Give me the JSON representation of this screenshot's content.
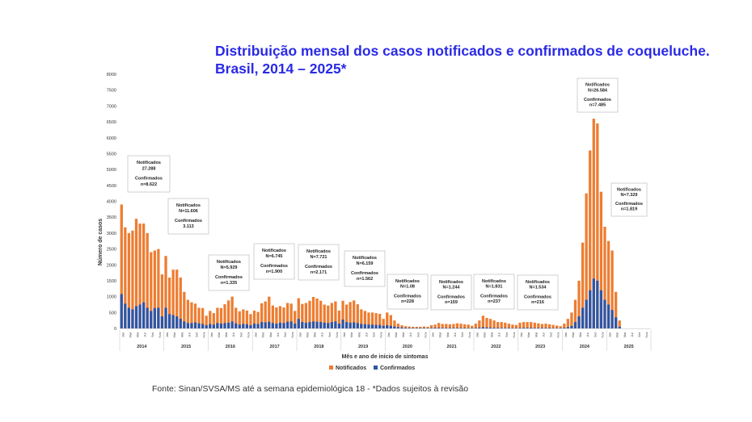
{
  "title_line1": "Distribuição mensal dos casos notificados e confirmados de coqueluche.",
  "title_line2": "Brasil, 2014 – 2025*",
  "source": "Fonte: Sinan/SVSA/MS até a semana epidemiológica 18 - *Dados sujeitos à revisão",
  "colors": {
    "notificados": "#ed7d31",
    "confirmados": "#2f55a4",
    "title": "#2a2ae6"
  },
  "chart_data": {
    "type": "bar",
    "stacked": "overlay",
    "title": "Distribuição mensal dos casos notificados e confirmados de coqueluche. Brasil, 2014 – 2025*",
    "xlabel": "Mês e ano de início de sintomas",
    "ylabel": "Número de casos",
    "ylim": [
      0,
      8000
    ],
    "yticks": [
      0,
      500,
      1000,
      1500,
      2000,
      2500,
      3000,
      3500,
      4000,
      4500,
      5000,
      5500,
      6000,
      6500,
      7000,
      7500,
      8000
    ],
    "years": [
      "2014",
      "2015",
      "2016",
      "2017",
      "2018",
      "2019",
      "2020",
      "2021",
      "2022",
      "2023",
      "2024",
      "2025"
    ],
    "month_ticks": [
      "Jan",
      "Mar",
      "Mai",
      "Jul",
      "Set",
      "Nov"
    ],
    "legend": [
      "Notificados",
      "Confirmados"
    ],
    "legend_position": "bottom-center",
    "series": [
      {
        "name": "Notificados",
        "values": [
          3900,
          3180,
          3000,
          3080,
          3450,
          3300,
          3300,
          3000,
          2400,
          2450,
          2500,
          1700,
          2280,
          1600,
          1850,
          1850,
          1600,
          1150,
          900,
          820,
          780,
          650,
          640,
          400,
          550,
          480,
          650,
          640,
          760,
          880,
          1000,
          650,
          540,
          600,
          560,
          450,
          560,
          520,
          790,
          850,
          1000,
          720,
          660,
          700,
          660,
          800,
          780,
          550,
          950,
          770,
          800,
          870,
          990,
          940,
          870,
          750,
          720,
          800,
          850,
          560,
          870,
          750,
          830,
          880,
          760,
          600,
          550,
          500,
          500,
          480,
          460,
          300,
          500,
          420,
          250,
          150,
          100,
          70,
          60,
          50,
          50,
          50,
          60,
          50,
          100,
          120,
          170,
          140,
          140,
          130,
          140,
          160,
          150,
          130,
          120,
          80,
          150,
          250,
          400,
          330,
          300,
          250,
          200,
          200,
          180,
          150,
          120,
          110,
          180,
          200,
          200,
          200,
          180,
          160,
          140,
          150,
          130,
          110,
          90,
          70,
          150,
          300,
          500,
          900,
          1500,
          2700,
          4250,
          5600,
          6600,
          6450,
          4300,
          3200,
          2750,
          2450,
          1150,
          250,
          0,
          0,
          0,
          0,
          0,
          0,
          0,
          0
        ]
      },
      {
        "name": "Confirmados",
        "values": [
          1080,
          780,
          650,
          600,
          700,
          750,
          820,
          650,
          550,
          640,
          650,
          380,
          650,
          450,
          420,
          380,
          300,
          220,
          170,
          170,
          190,
          160,
          140,
          100,
          140,
          120,
          170,
          150,
          170,
          180,
          220,
          160,
          120,
          140,
          130,
          100,
          150,
          140,
          200,
          190,
          210,
          170,
          150,
          180,
          170,
          210,
          220,
          150,
          300,
          200,
          180,
          200,
          220,
          210,
          200,
          180,
          170,
          200,
          220,
          150,
          280,
          200,
          180,
          190,
          170,
          140,
          130,
          120,
          120,
          110,
          110,
          80,
          100,
          80,
          60,
          40,
          30,
          20,
          15,
          15,
          15,
          15,
          15,
          10,
          15,
          20,
          20,
          15,
          15,
          15,
          15,
          15,
          15,
          15,
          10,
          10,
          15,
          25,
          40,
          30,
          25,
          20,
          20,
          15,
          15,
          15,
          10,
          10,
          15,
          20,
          20,
          20,
          15,
          15,
          15,
          15,
          15,
          10,
          10,
          10,
          20,
          40,
          80,
          200,
          380,
          650,
          900,
          1200,
          1570,
          1500,
          1200,
          900,
          750,
          580,
          350,
          50,
          0,
          0,
          0,
          0,
          0,
          0,
          0,
          0
        ]
      }
    ],
    "annotations": [
      {
        "year": "2014",
        "line1": "Notificados",
        "line2": "27.288",
        "line3": "Confirmados",
        "line4": "n=8.622"
      },
      {
        "year": "2015",
        "line1": "Notificados",
        "line2": "N=11.606",
        "line3": "Confirmados",
        "line4": "3.113"
      },
      {
        "year": "2016",
        "line1": "Notificados",
        "line2": "N=5.929",
        "line3": "Confirmados",
        "line4": "n=1.335"
      },
      {
        "year": "2017",
        "line1": "Notificados",
        "line2": "N=6.745",
        "line3": "Confirmados",
        "line4": "n=1.900"
      },
      {
        "year": "2018",
        "line1": "Notificados",
        "line2": "N=7.721",
        "line3": "Confirmados",
        "line4": "n=2.171"
      },
      {
        "year": "2019",
        "line1": "Notificados",
        "line2": "N=6.159",
        "line3": "Confirmados",
        "line4": "n=1.562"
      },
      {
        "year": "2020",
        "line1": "Notificados",
        "line2": "N=1.08",
        "line3": "Confirmados",
        "line4": "n=228"
      },
      {
        "year": "2021",
        "line1": "Notificados",
        "line2": "N=1.244",
        "line3": "Confirmados",
        "line4": "n=159"
      },
      {
        "year": "2022",
        "line1": "Notificados",
        "line2": "N=1.831",
        "line3": "Confirmados",
        "line4": "n=237"
      },
      {
        "year": "2023",
        "line1": "Notificados",
        "line2": "N=1.534",
        "line3": "Confirmados",
        "line4": "n=216"
      },
      {
        "year": "2024",
        "line1": "Notificados",
        "line2": "N=26.584",
        "line3": "Confirmados",
        "line4": "n=7.485"
      },
      {
        "year": "2025",
        "line1": "Notificados",
        "line2": "N=7.329",
        "line3": "Confirmados",
        "line4": "n=1.819"
      }
    ]
  }
}
